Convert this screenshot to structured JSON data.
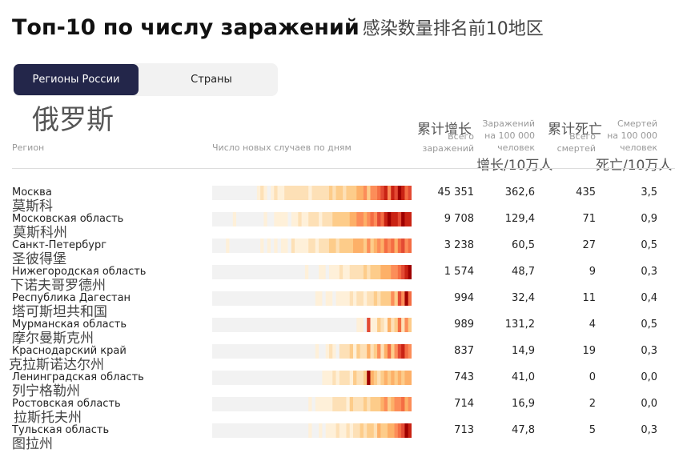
{
  "title": {
    "ru": "Топ-10 по числу заражений",
    "zh": "感染数量排名前10地区"
  },
  "tabs": [
    {
      "label": "Регионы России",
      "active": true
    },
    {
      "label": "Страны",
      "active": false
    }
  ],
  "subtitle_zh": "俄罗斯",
  "headers": {
    "region": "Регион",
    "daily": "Число новых случаев по дням",
    "total_cases_zh": "累计增长",
    "total_cases_l1": "Всего",
    "total_cases_l2": "заражений",
    "cases_per100k_l1": "Заражений",
    "cases_per100k_l2": "на 100 000",
    "cases_per100k_l3": "человек",
    "cases_per100k_zh": "增长/10万人",
    "total_deaths_zh": "累计死亡",
    "total_deaths_l1": "Всего",
    "total_deaths_l2": "смертей",
    "deaths_per100k_l1": "Смертей",
    "deaths_per100k_l2": "на 100 000",
    "deaths_per100k_l3": "человек",
    "deaths_per100k_zh": "死亡/10万人"
  },
  "colors": {
    "tab_active_bg": "#23264a",
    "heat_low": "#f2f2f2",
    "heat_high": "#b30000"
  },
  "rows": [
    {
      "name_ru": "Москва",
      "name_zh": "莫斯科",
      "cases": "45 351",
      "cases_per100k": "362,6",
      "deaths": "435",
      "deaths_per100k": "3,5",
      "heat": [
        0,
        0,
        0,
        0,
        0,
        0,
        0,
        0,
        0,
        0,
        0,
        0,
        0,
        1,
        2,
        1,
        0,
        1,
        2,
        1,
        1,
        2,
        2,
        2,
        2,
        2,
        2,
        2,
        1,
        2,
        2,
        2,
        2,
        2,
        3,
        2,
        3,
        3,
        2,
        3,
        3,
        3,
        4,
        4,
        5,
        3,
        5,
        5,
        6,
        7,
        8,
        5,
        8,
        7,
        9,
        8,
        6,
        7
      ]
    },
    {
      "name_ru": "Московская область",
      "name_zh": "莫斯科州",
      "cases": "9 708",
      "cases_per100k": "129,4",
      "deaths": "71",
      "deaths_per100k": "0,9",
      "heat": [
        0,
        0,
        0,
        0,
        0,
        0,
        1,
        0,
        0,
        0,
        0,
        0,
        0,
        0,
        0,
        1,
        0,
        0,
        1,
        1,
        1,
        1,
        0,
        1,
        1,
        2,
        1,
        1,
        2,
        2,
        2,
        1,
        2,
        2,
        2,
        3,
        3,
        3,
        3,
        3,
        4,
        4,
        5,
        5,
        4,
        5,
        6,
        5,
        7,
        6,
        8,
        9,
        8,
        8,
        7,
        9,
        8,
        8
      ]
    },
    {
      "name_ru": "Санкт-Петербург",
      "name_zh": "圣彼得堡",
      "cases": "3 238",
      "cases_per100k": "60,5",
      "deaths": "27",
      "deaths_per100k": "0,5",
      "heat": [
        0,
        0,
        0,
        0,
        1,
        0,
        0,
        0,
        0,
        0,
        0,
        0,
        0,
        0,
        1,
        0,
        1,
        0,
        1,
        0,
        1,
        1,
        0,
        2,
        1,
        1,
        1,
        1,
        2,
        2,
        1,
        2,
        2,
        2,
        3,
        3,
        2,
        3,
        3,
        3,
        3,
        4,
        4,
        4,
        3,
        5,
        3,
        4,
        5,
        4,
        6,
        5,
        6,
        4,
        6,
        7,
        5,
        6
      ]
    },
    {
      "name_ru": "Нижегородская область",
      "name_zh": "下诺夫哥罗德州",
      "cases": "1 574",
      "cases_per100k": "48,7",
      "deaths": "9",
      "deaths_per100k": "0,3",
      "heat": [
        0,
        0,
        0,
        0,
        0,
        0,
        0,
        0,
        0,
        0,
        0,
        0,
        0,
        0,
        0,
        0,
        0,
        0,
        0,
        0,
        0,
        0,
        0,
        0,
        0,
        0,
        0,
        1,
        0,
        0,
        0,
        1,
        1,
        0,
        1,
        1,
        1,
        2,
        1,
        1,
        2,
        2,
        2,
        2,
        3,
        2,
        3,
        3,
        3,
        4,
        4,
        4,
        5,
        5,
        6,
        7,
        8,
        9
      ]
    },
    {
      "name_ru": "Республика Дагестан",
      "name_zh": "塔可斯坦共和国",
      "cases": "994",
      "cases_per100k": "32,4",
      "deaths": "11",
      "deaths_per100k": "0,4",
      "heat": [
        0,
        0,
        0,
        0,
        0,
        0,
        0,
        0,
        0,
        0,
        0,
        0,
        0,
        0,
        0,
        0,
        0,
        0,
        0,
        0,
        0,
        0,
        0,
        0,
        0,
        0,
        0,
        0,
        0,
        0,
        1,
        1,
        0,
        1,
        1,
        0,
        1,
        1,
        1,
        1,
        2,
        1,
        2,
        2,
        1,
        2,
        2,
        3,
        2,
        3,
        3,
        3,
        5,
        3,
        7,
        5,
        9,
        6
      ]
    },
    {
      "name_ru": "Мурманская область",
      "name_zh": "摩尔曼斯克州",
      "cases": "989",
      "cases_per100k": "131,2",
      "deaths": "4",
      "deaths_per100k": "0,5",
      "heat": [
        0,
        0,
        0,
        0,
        0,
        0,
        0,
        0,
        0,
        0,
        0,
        0,
        0,
        0,
        0,
        0,
        0,
        0,
        0,
        0,
        0,
        0,
        0,
        0,
        0,
        0,
        0,
        0,
        0,
        0,
        0,
        0,
        0,
        0,
        0,
        0,
        0,
        0,
        0,
        0,
        0,
        0,
        1,
        1,
        0,
        7,
        1,
        1,
        3,
        2,
        1,
        4,
        2,
        3,
        6,
        2,
        5,
        3
      ]
    },
    {
      "name_ru": "Краснодарский край",
      "name_zh": "克拉斯诺达尔州",
      "cases": "837",
      "cases_per100k": "14,9",
      "deaths": "19",
      "deaths_per100k": "0,3",
      "heat": [
        0,
        0,
        0,
        0,
        0,
        0,
        0,
        0,
        0,
        0,
        0,
        0,
        0,
        0,
        0,
        0,
        0,
        0,
        0,
        0,
        0,
        0,
        0,
        0,
        0,
        0,
        0,
        0,
        0,
        0,
        1,
        0,
        0,
        1,
        2,
        1,
        0,
        2,
        2,
        2,
        3,
        1,
        3,
        2,
        2,
        4,
        2,
        3,
        5,
        2,
        4,
        6,
        3,
        5,
        7,
        8,
        6,
        5
      ]
    },
    {
      "name_ru": "Ленинградская область",
      "name_zh": "列宁格勒州",
      "cases": "743",
      "cases_per100k": "41,0",
      "deaths": "0",
      "deaths_per100k": "0,0",
      "heat": [
        0,
        0,
        0,
        0,
        0,
        0,
        0,
        0,
        0,
        0,
        0,
        0,
        0,
        0,
        0,
        0,
        0,
        0,
        0,
        0,
        0,
        0,
        0,
        0,
        0,
        0,
        0,
        0,
        0,
        0,
        0,
        0,
        1,
        1,
        1,
        2,
        1,
        2,
        2,
        2,
        1,
        3,
        2,
        2,
        3,
        9,
        4,
        3,
        2,
        3,
        4,
        3,
        4,
        3,
        4,
        3,
        4,
        4
      ]
    },
    {
      "name_ru": "Ростовская область",
      "name_zh": "拉斯托夫州",
      "cases": "714",
      "cases_per100k": "16,9",
      "deaths": "2",
      "deaths_per100k": "0,0",
      "heat": [
        0,
        0,
        0,
        0,
        0,
        0,
        0,
        0,
        0,
        0,
        0,
        0,
        0,
        0,
        0,
        0,
        0,
        0,
        0,
        0,
        0,
        0,
        0,
        0,
        0,
        0,
        0,
        0,
        1,
        0,
        1,
        1,
        1,
        1,
        1,
        2,
        2,
        2,
        2,
        1,
        3,
        2,
        2,
        2,
        3,
        2,
        3,
        3,
        3,
        4,
        5,
        3,
        4,
        5,
        5,
        6,
        4,
        5
      ]
    },
    {
      "name_ru": "Тульская область",
      "name_zh": "图拉州",
      "cases": "713",
      "cases_per100k": "47,8",
      "deaths": "5",
      "deaths_per100k": "0,3",
      "heat": [
        0,
        0,
        0,
        0,
        0,
        0,
        0,
        0,
        0,
        0,
        0,
        0,
        0,
        0,
        0,
        0,
        0,
        0,
        0,
        0,
        0,
        0,
        0,
        0,
        0,
        0,
        0,
        0,
        1,
        0,
        0,
        1,
        0,
        1,
        1,
        1,
        2,
        1,
        1,
        2,
        1,
        2,
        2,
        3,
        2,
        3,
        3,
        2,
        4,
        3,
        3,
        4,
        4,
        5,
        6,
        7,
        9,
        8
      ]
    }
  ]
}
